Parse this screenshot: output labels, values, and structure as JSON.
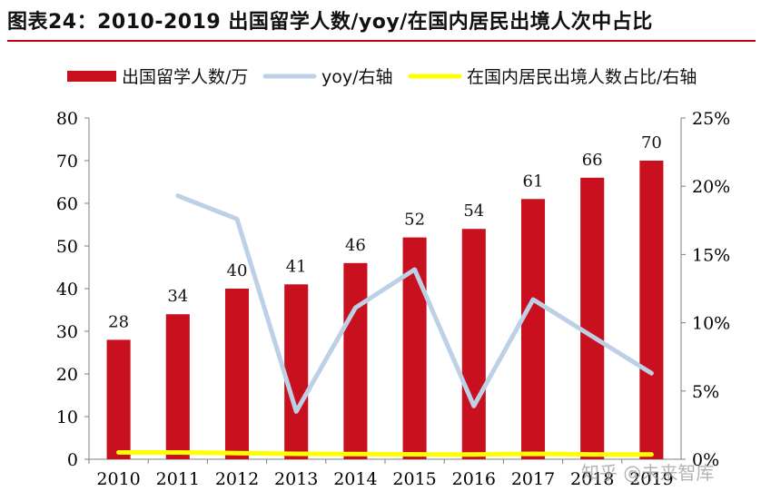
{
  "title": "图表24：2010-2019 出国留学人数/yoy/在国内居民出境人次中占比",
  "watermark": "知乎 @未来智库",
  "colors": {
    "bar": "#c8101e",
    "yoy": "#bcd0e6",
    "share": "#ffff00",
    "title_rule": "#c0000c"
  },
  "chart_data": {
    "type": "bar",
    "categories": [
      "2010",
      "2011",
      "2012",
      "2013",
      "2014",
      "2015",
      "2016",
      "2017",
      "2018",
      "2019"
    ],
    "series": [
      {
        "name": "出国留学人数/万",
        "kind": "bar",
        "axis": "left",
        "values": [
          28,
          34,
          40,
          41,
          46,
          52,
          54,
          61,
          66,
          70
        ],
        "labels": [
          "28",
          "34",
          "40",
          "41",
          "46",
          "52",
          "54",
          "61",
          "66",
          "70"
        ]
      },
      {
        "name": "yoy/右轴",
        "kind": "line",
        "axis": "right",
        "values": [
          null,
          19.3,
          17.6,
          3.5,
          11.1,
          13.9,
          3.9,
          11.7,
          9.0,
          6.3
        ]
      },
      {
        "name": "在国内居民出境人数占比/右轴",
        "kind": "line",
        "axis": "right",
        "values": [
          0.5,
          0.5,
          0.45,
          0.4,
          0.38,
          0.36,
          0.35,
          0.4,
          0.35,
          0.35
        ]
      }
    ],
    "y_left": {
      "min": 0,
      "max": 80,
      "ticks": [
        "0",
        "10",
        "20",
        "30",
        "40",
        "50",
        "60",
        "70",
        "80"
      ]
    },
    "y_right": {
      "min": 0,
      "max": 25,
      "ticks": [
        "0%",
        "5%",
        "10%",
        "15%",
        "20%",
        "25%"
      ]
    },
    "legend_position": "top",
    "grid": false
  }
}
